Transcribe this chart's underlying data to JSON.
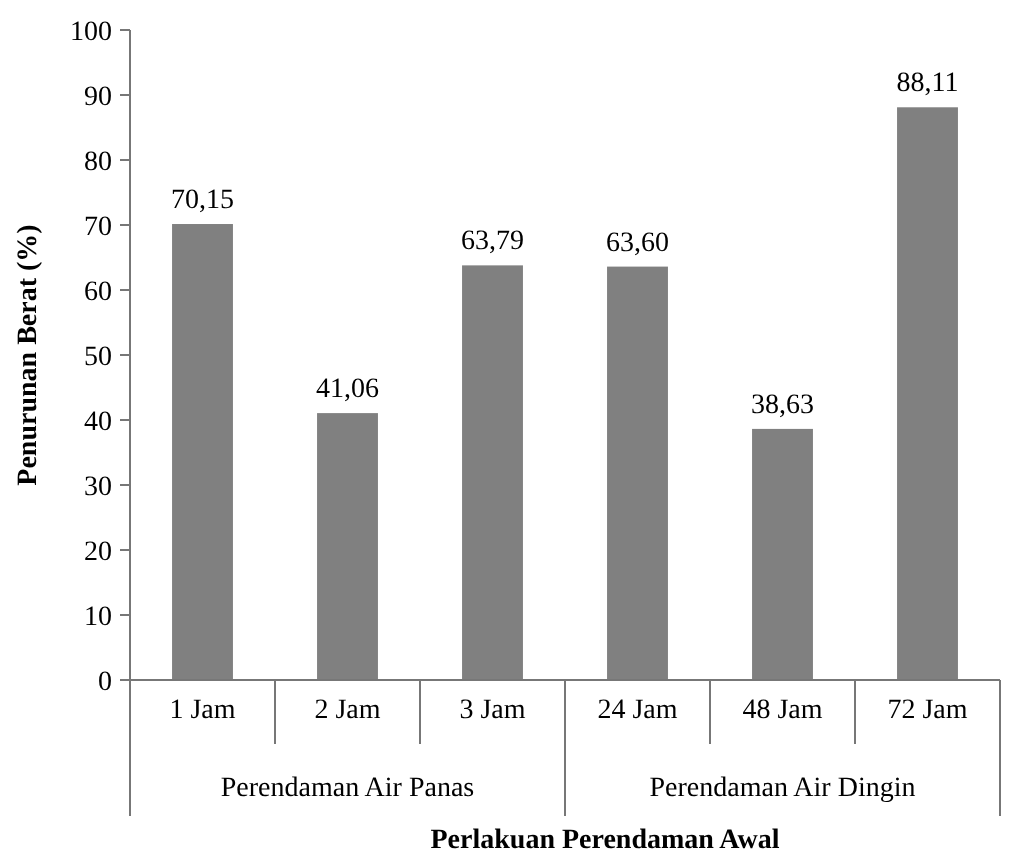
{
  "chart_data": {
    "type": "bar",
    "xlabel": "Perlakuan Perendaman Awal",
    "ylabel": "Penurunan Berat (%)",
    "categories": [
      "1 Jam",
      "2 Jam",
      "3 Jam",
      "24 Jam",
      "48 Jam",
      "72 Jam"
    ],
    "values": [
      70.15,
      41.06,
      63.79,
      63.6,
      38.63,
      88.11
    ],
    "value_labels": [
      "70,15",
      "41,06",
      "63,79",
      "63,60",
      "38,63",
      "88,11"
    ],
    "color": "#808080",
    "ylim": [
      0,
      100
    ],
    "yticks": [
      0,
      10,
      20,
      30,
      40,
      50,
      60,
      70,
      80,
      90,
      100
    ],
    "grid": false,
    "annotations": [
      "Perendaman Air Panas",
      "Perendaman Air Dingin"
    ]
  }
}
